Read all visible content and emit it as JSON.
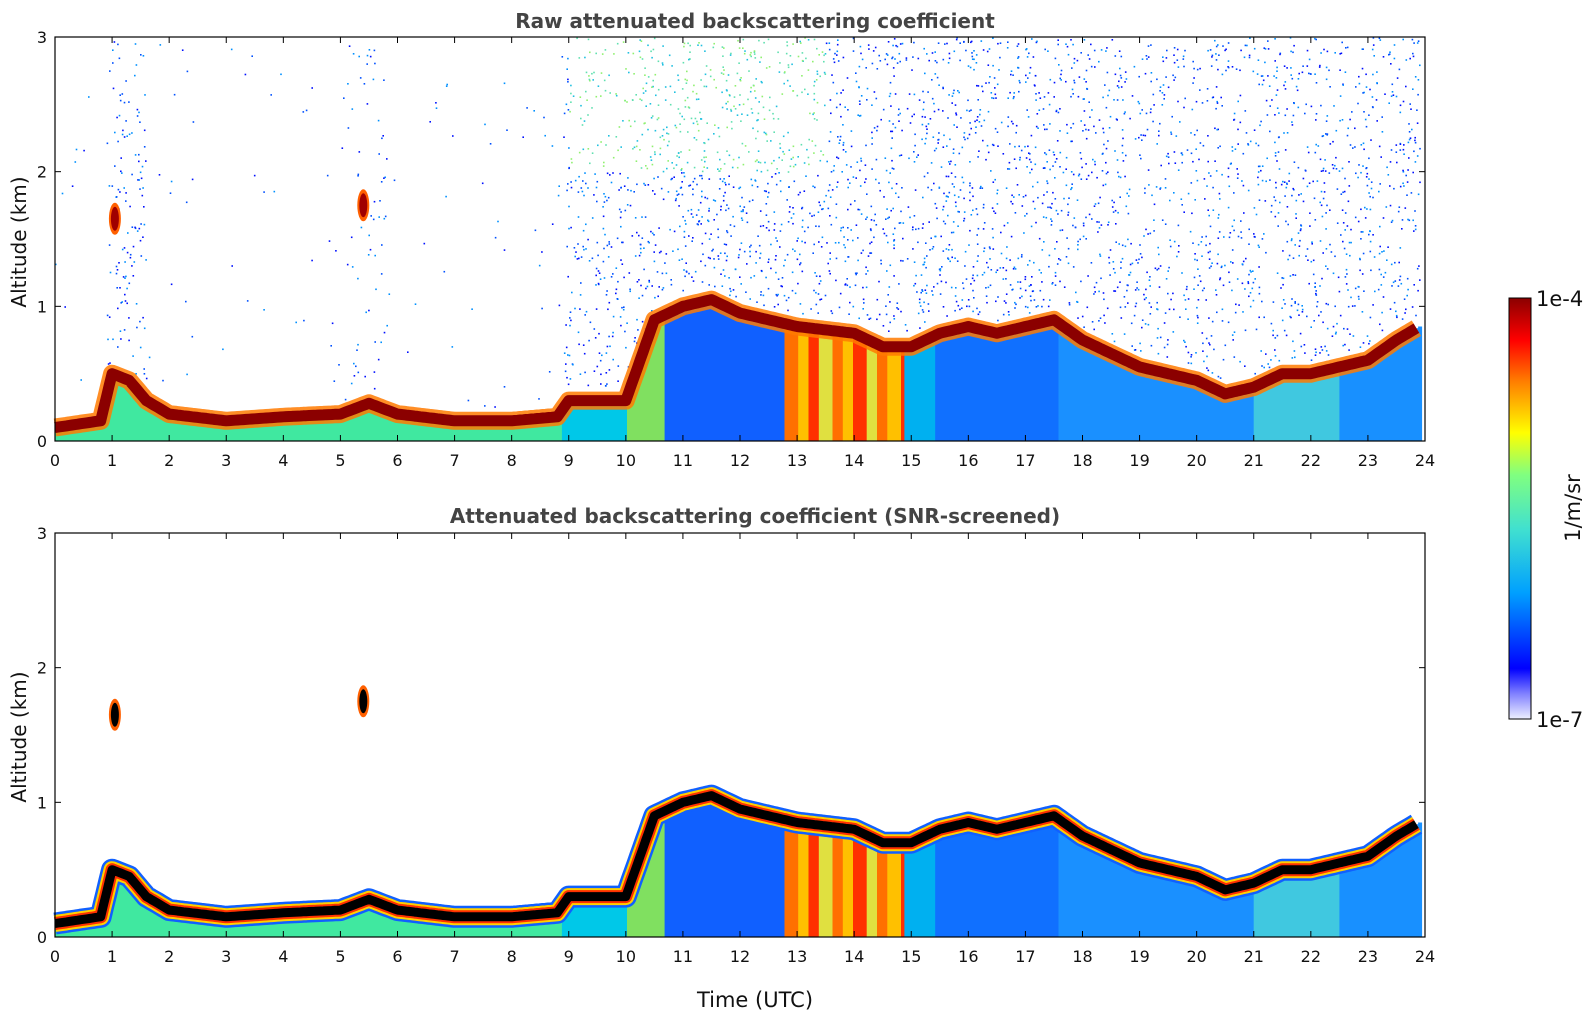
{
  "chart_data": [
    {
      "type": "heatmap",
      "title": "Raw attenuated backscattering coefficient",
      "xlabel": "",
      "ylabel": "Altitude (km)",
      "xlim": [
        0,
        24
      ],
      "ylim": [
        0,
        3
      ],
      "xticks": [
        "0",
        "1",
        "2",
        "3",
        "4",
        "5",
        "6",
        "7",
        "8",
        "9",
        "10",
        "11",
        "12",
        "13",
        "14",
        "15",
        "16",
        "17",
        "18",
        "19",
        "20",
        "21",
        "22",
        "23",
        "24"
      ],
      "yticks": [
        "0",
        "1",
        "2",
        "3"
      ],
      "layer_height_km": {
        "time_h": [
          0,
          0.8,
          1.0,
          1.3,
          1.6,
          2.0,
          3,
          4,
          5,
          5.5,
          6,
          7,
          8,
          8.8,
          9.0,
          9.4,
          10.0,
          10.5,
          11.0,
          11.5,
          12.0,
          12.5,
          13.0,
          14.0,
          14.5,
          15.0,
          15.5,
          16.0,
          16.5,
          17.0,
          17.5,
          18.0,
          18.5,
          19.0,
          19.5,
          20.0,
          20.5,
          21.0,
          21.5,
          22.0,
          22.5,
          23.0,
          23.5,
          23.9
        ],
        "km": [
          0.1,
          0.15,
          0.5,
          0.45,
          0.3,
          0.2,
          0.15,
          0.18,
          0.2,
          0.28,
          0.2,
          0.15,
          0.15,
          0.18,
          0.3,
          0.3,
          0.3,
          0.9,
          1.0,
          1.05,
          0.95,
          0.9,
          0.85,
          0.8,
          0.7,
          0.7,
          0.8,
          0.85,
          0.8,
          0.85,
          0.9,
          0.75,
          0.65,
          0.55,
          0.5,
          0.45,
          0.35,
          0.4,
          0.5,
          0.5,
          0.55,
          0.6,
          0.75,
          0.85
        ]
      },
      "clouds": [
        {
          "time_h": 1.05,
          "km": 1.65
        },
        {
          "time_h": 5.4,
          "km": 1.75
        }
      ],
      "noise_above_layer": true
    },
    {
      "type": "heatmap",
      "title": "Attenuated backscattering coefficient (SNR-screened)",
      "xlabel": "Time (UTC)",
      "ylabel": "Altitude (km)",
      "xlim": [
        0,
        24
      ],
      "ylim": [
        0,
        3
      ],
      "xticks": [
        "0",
        "1",
        "2",
        "3",
        "4",
        "5",
        "6",
        "7",
        "8",
        "9",
        "10",
        "11",
        "12",
        "13",
        "14",
        "15",
        "16",
        "17",
        "18",
        "19",
        "20",
        "21",
        "22",
        "23",
        "24"
      ],
      "yticks": [
        "0",
        "1",
        "2",
        "3"
      ],
      "layer_height_km": {
        "time_h": [
          0,
          0.8,
          1.0,
          1.3,
          1.6,
          2.0,
          3,
          4,
          5,
          5.5,
          6,
          7,
          8,
          8.8,
          9.0,
          9.4,
          10.0,
          10.5,
          11.0,
          11.5,
          12.0,
          12.5,
          13.0,
          14.0,
          14.5,
          15.0,
          15.5,
          16.0,
          16.5,
          17.0,
          17.5,
          18.0,
          18.5,
          19.0,
          19.5,
          20.0,
          20.5,
          21.0,
          21.5,
          22.0,
          22.5,
          23.0,
          23.5,
          23.9
        ],
        "km": [
          0.1,
          0.15,
          0.5,
          0.45,
          0.3,
          0.2,
          0.15,
          0.18,
          0.2,
          0.28,
          0.2,
          0.15,
          0.15,
          0.18,
          0.3,
          0.3,
          0.3,
          0.9,
          1.0,
          1.05,
          0.95,
          0.9,
          0.85,
          0.8,
          0.7,
          0.7,
          0.8,
          0.85,
          0.8,
          0.85,
          0.9,
          0.75,
          0.65,
          0.55,
          0.5,
          0.45,
          0.35,
          0.4,
          0.5,
          0.5,
          0.55,
          0.6,
          0.75,
          0.85
        ]
      },
      "clouds": [
        {
          "time_h": 1.05,
          "km": 1.65
        },
        {
          "time_h": 5.4,
          "km": 1.75
        }
      ],
      "noise_above_layer": false
    }
  ],
  "colorbar": {
    "label": "1/m/sr",
    "max_label": "1e-4",
    "min_label": "1e-7",
    "scale": "log",
    "range": [
      1e-07,
      0.0001
    ]
  },
  "colormap": [
    "#ffffff",
    "#0000ff",
    "#00a0ff",
    "#40e0d0",
    "#80ff80",
    "#ffff00",
    "#ff8000",
    "#ff0000",
    "#8b0000"
  ]
}
